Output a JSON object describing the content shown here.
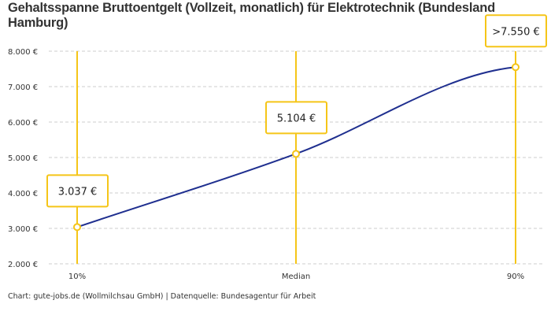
{
  "chart_data": {
    "type": "line",
    "title": "Gehaltsspanne Bruttoentgelt (Vollzeit, monatlich) für Elektrotechnik (Bundesland Hamburg)",
    "categories": [
      "10%",
      "Median",
      "90%"
    ],
    "values": [
      3037,
      5104,
      7550
    ],
    "data_labels": [
      "3.037 €",
      "5.104 €",
      ">7.550 €"
    ],
    "y_ticks": [
      2000,
      3000,
      4000,
      5000,
      6000,
      7000,
      8000
    ],
    "y_tick_labels": [
      "2.000 €",
      "3.000 €",
      "4.000 €",
      "5.000 €",
      "6.000 €",
      "7.000 €",
      "8.000 €"
    ],
    "ylim": [
      2000,
      8000
    ],
    "grid": "horizontal dashed",
    "xlabel": "",
    "ylabel": "",
    "colors": {
      "line": "#1f2f8f",
      "accent": "#f5c518",
      "grid": "#cccccc"
    }
  },
  "credit": "Chart: gute-jobs.de (Wollmilchsau GmbH) | Datenquelle: Bundesagentur für Arbeit"
}
